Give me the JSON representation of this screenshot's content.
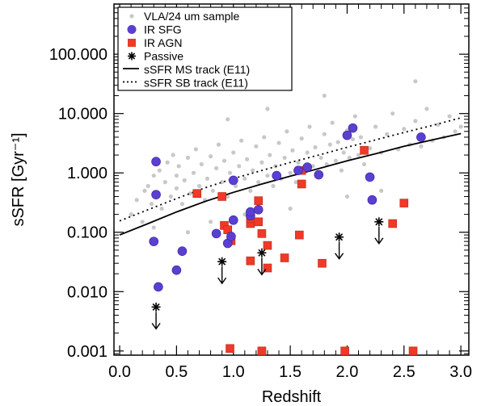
{
  "chart_data": {
    "type": "scatter",
    "xlabel": "Redshift",
    "ylabel": "sSFR [Gyr⁻¹]",
    "xlim": [
      -0.05,
      3.07
    ],
    "ylim": [
      0.00085,
      700
    ],
    "yscale": "log",
    "xticks": [
      "0.0",
      "0.5",
      "1.0",
      "1.5",
      "2.0",
      "2.5",
      "3.0"
    ],
    "yticks": [
      "0.001",
      "0.010",
      "0.100",
      "1.000",
      "10.000",
      "100.000"
    ],
    "legend_position": "top-left",
    "colors": {
      "vla": "#c8c8c8",
      "sfg": "#5b3fd1",
      "agn": "#ee3a26",
      "passive": "#000000",
      "line": "#000000"
    },
    "legend": [
      {
        "label": "VLA/24 um sample",
        "marker": "gray-dot"
      },
      {
        "label": "IR SFG",
        "marker": "purple-circle"
      },
      {
        "label": "IR AGN",
        "marker": "red-square"
      },
      {
        "label": "Passive",
        "marker": "asterisk"
      },
      {
        "label": "sSFR MS track (E11)",
        "marker": "solid-line"
      },
      {
        "label": "sSFR SB track (E11)",
        "marker": "dotted-line"
      }
    ],
    "series": [
      {
        "name": "sSFR MS track (E11)",
        "kind": "line",
        "style": "solid",
        "points": [
          [
            0.0,
            0.09
          ],
          [
            0.25,
            0.14
          ],
          [
            0.5,
            0.22
          ],
          [
            0.75,
            0.33
          ],
          [
            1.0,
            0.47
          ],
          [
            1.25,
            0.65
          ],
          [
            1.5,
            0.88
          ],
          [
            1.75,
            1.18
          ],
          [
            2.0,
            1.6
          ],
          [
            2.25,
            2.1
          ],
          [
            2.5,
            2.8
          ],
          [
            2.75,
            3.6
          ],
          [
            3.0,
            4.6
          ]
        ]
      },
      {
        "name": "sSFR SB track (E11)",
        "kind": "line",
        "style": "dotted",
        "points": [
          [
            0.0,
            0.155
          ],
          [
            0.25,
            0.24
          ],
          [
            0.5,
            0.37
          ],
          [
            0.75,
            0.56
          ],
          [
            1.0,
            0.8
          ],
          [
            1.25,
            1.1
          ],
          [
            1.5,
            1.5
          ],
          [
            1.75,
            2.0
          ],
          [
            2.0,
            2.7
          ],
          [
            2.25,
            3.6
          ],
          [
            2.5,
            4.8
          ],
          [
            2.75,
            6.3
          ],
          [
            3.0,
            8.5
          ]
        ]
      },
      {
        "name": "VLA/24 um sample",
        "kind": "scatter",
        "marker": "gray-dot",
        "points": [
          [
            0.1,
            0.2
          ],
          [
            0.15,
            0.35
          ],
          [
            0.2,
            0.15
          ],
          [
            0.22,
            0.5
          ],
          [
            0.25,
            0.6
          ],
          [
            0.28,
            0.3
          ],
          [
            0.3,
            0.9
          ],
          [
            0.32,
            0.45
          ],
          [
            0.35,
            1.1
          ],
          [
            0.37,
            0.25
          ],
          [
            0.4,
            0.7
          ],
          [
            0.42,
            1.5
          ],
          [
            0.45,
            0.4
          ],
          [
            0.47,
            2.0
          ],
          [
            0.5,
            0.55
          ],
          [
            0.5,
            0.9
          ],
          [
            0.52,
            1.3
          ],
          [
            0.55,
            0.3
          ],
          [
            0.57,
            0.75
          ],
          [
            0.6,
            1.8
          ],
          [
            0.62,
            0.45
          ],
          [
            0.65,
            1.0
          ],
          [
            0.67,
            2.5
          ],
          [
            0.7,
            0.6
          ],
          [
            0.72,
            1.4
          ],
          [
            0.75,
            0.35
          ],
          [
            0.77,
            0.8
          ],
          [
            0.8,
            1.9
          ],
          [
            0.82,
            0.5
          ],
          [
            0.85,
            1.2
          ],
          [
            0.87,
            3.0
          ],
          [
            0.9,
            0.7
          ],
          [
            0.92,
            1.6
          ],
          [
            0.95,
            0.4
          ],
          [
            0.97,
            1.0
          ],
          [
            1.0,
            2.2
          ],
          [
            1.02,
            0.6
          ],
          [
            1.05,
            1.3
          ],
          [
            1.07,
            3.5
          ],
          [
            1.1,
            0.8
          ],
          [
            1.12,
            1.7
          ],
          [
            1.15,
            0.5
          ],
          [
            1.17,
            1.1
          ],
          [
            1.2,
            2.8
          ],
          [
            1.22,
            0.7
          ],
          [
            1.25,
            1.5
          ],
          [
            1.27,
            4.0
          ],
          [
            1.3,
            0.9
          ],
          [
            1.32,
            2.0
          ],
          [
            1.35,
            0.6
          ],
          [
            1.37,
            1.3
          ],
          [
            1.4,
            3.2
          ],
          [
            1.42,
            0.8
          ],
          [
            1.45,
            1.8
          ],
          [
            1.47,
            5.0
          ],
          [
            1.5,
            1.0
          ],
          [
            1.52,
            2.4
          ],
          [
            1.55,
            0.7
          ],
          [
            1.57,
            1.5
          ],
          [
            1.6,
            3.8
          ],
          [
            1.62,
            1.1
          ],
          [
            1.65,
            2.2
          ],
          [
            1.67,
            6.0
          ],
          [
            1.7,
            1.3
          ],
          [
            1.72,
            2.7
          ],
          [
            1.75,
            0.9
          ],
          [
            1.77,
            1.8
          ],
          [
            1.8,
            4.5
          ],
          [
            1.82,
            1.4
          ],
          [
            1.85,
            3.0
          ],
          [
            1.87,
            7.0
          ],
          [
            1.9,
            1.6
          ],
          [
            1.92,
            3.3
          ],
          [
            1.95,
            1.1
          ],
          [
            1.97,
            2.2
          ],
          [
            2.0,
            5.2
          ],
          [
            2.02,
            1.8
          ],
          [
            2.05,
            3.7
          ],
          [
            2.07,
            9.0
          ],
          [
            2.1,
            2.0
          ],
          [
            2.12,
            4.0
          ],
          [
            2.15,
            1.4
          ],
          [
            2.2,
            2.6
          ],
          [
            2.25,
            6.0
          ],
          [
            2.3,
            2.2
          ],
          [
            2.35,
            4.5
          ],
          [
            2.4,
            10.0
          ],
          [
            2.45,
            2.5
          ],
          [
            2.5,
            5.5
          ],
          [
            2.55,
            3.0
          ],
          [
            2.6,
            7.5
          ],
          [
            2.65,
            2.8
          ],
          [
            2.7,
            12.0
          ],
          [
            2.75,
            3.5
          ],
          [
            2.8,
            6.5
          ],
          [
            2.85,
            4.0
          ],
          [
            2.9,
            9.0
          ],
          [
            2.95,
            5.0
          ],
          [
            3.0,
            6.0
          ],
          [
            1.8,
            20.0
          ],
          [
            1.3,
            12.0
          ],
          [
            0.95,
            8.0
          ],
          [
            0.6,
            0.1
          ],
          [
            0.3,
            0.12
          ],
          [
            0.8,
            0.15
          ],
          [
            1.1,
            0.2
          ],
          [
            2.0,
            0.4
          ],
          [
            2.3,
            0.5
          ],
          [
            1.5,
            0.25
          ],
          [
            2.6,
            35.0
          ]
        ]
      },
      {
        "name": "IR SFG",
        "kind": "scatter",
        "marker": "purple-circle",
        "points": [
          [
            0.32,
            1.55
          ],
          [
            0.32,
            0.43
          ],
          [
            0.3,
            0.07
          ],
          [
            0.34,
            0.012
          ],
          [
            0.5,
            0.023
          ],
          [
            0.55,
            0.048
          ],
          [
            0.85,
            0.095
          ],
          [
            0.95,
            0.065
          ],
          [
            0.98,
            0.085
          ],
          [
            1.0,
            0.16
          ],
          [
            1.0,
            0.75
          ],
          [
            1.15,
            0.19
          ],
          [
            1.15,
            0.22
          ],
          [
            1.22,
            0.24
          ],
          [
            1.38,
            0.9
          ],
          [
            1.57,
            1.1
          ],
          [
            1.65,
            1.25
          ],
          [
            1.75,
            0.93
          ],
          [
            2.0,
            4.3
          ],
          [
            2.05,
            5.7
          ],
          [
            2.2,
            0.85
          ],
          [
            2.22,
            0.35
          ],
          [
            2.65,
            4.0
          ]
        ]
      },
      {
        "name": "IR AGN",
        "kind": "scatter",
        "marker": "red-square",
        "points": [
          [
            0.68,
            0.45
          ],
          [
            0.9,
            0.4
          ],
          [
            0.92,
            0.13
          ],
          [
            0.95,
            0.11
          ],
          [
            0.98,
            0.072
          ],
          [
            1.15,
            0.033
          ],
          [
            1.15,
            0.14
          ],
          [
            1.15,
            0.17
          ],
          [
            1.22,
            0.34
          ],
          [
            1.22,
            0.15
          ],
          [
            1.25,
            0.095
          ],
          [
            1.3,
            0.025
          ],
          [
            1.3,
            0.06
          ],
          [
            1.45,
            0.037
          ],
          [
            1.58,
            0.09
          ],
          [
            1.6,
            1.1
          ],
          [
            1.6,
            0.65
          ],
          [
            1.78,
            0.03
          ],
          [
            2.15,
            2.4
          ],
          [
            2.4,
            0.14
          ],
          [
            2.5,
            0.31
          ],
          [
            0.97,
            0.0011
          ],
          [
            1.25,
            0.001
          ],
          [
            1.98,
            0.001
          ],
          [
            2.58,
            0.001
          ]
        ]
      },
      {
        "name": "Passive",
        "kind": "upper-limit",
        "marker": "asterisk",
        "points": [
          [
            0.32,
            0.0055
          ],
          [
            0.9,
            0.032
          ],
          [
            1.25,
            0.045
          ],
          [
            1.93,
            0.083
          ],
          [
            2.28,
            0.15
          ]
        ]
      }
    ]
  }
}
